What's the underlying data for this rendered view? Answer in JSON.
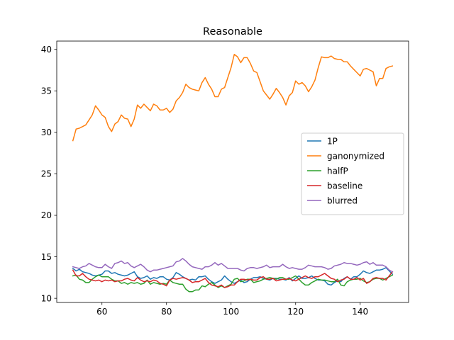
{
  "chart_data": {
    "type": "line",
    "title": "Reasonable",
    "xlabel": "",
    "ylabel": "",
    "xlim": [
      46,
      155
    ],
    "ylim": [
      9.5,
      41
    ],
    "xticks": [
      60,
      80,
      100,
      120,
      140
    ],
    "yticks": [
      10,
      15,
      20,
      25,
      30,
      35,
      40
    ],
    "grid": false,
    "legend": "center-right",
    "x": [
      51,
      52,
      53,
      54,
      55,
      56,
      57,
      58,
      59,
      60,
      61,
      62,
      63,
      64,
      65,
      66,
      67,
      68,
      69,
      70,
      71,
      72,
      73,
      74,
      75,
      76,
      77,
      78,
      79,
      80,
      81,
      82,
      83,
      84,
      85,
      86,
      87,
      88,
      89,
      90,
      91,
      92,
      93,
      94,
      95,
      96,
      97,
      98,
      99,
      100,
      101,
      102,
      103,
      104,
      105,
      106,
      107,
      108,
      109,
      110,
      111,
      112,
      113,
      114,
      115,
      116,
      117,
      118,
      119,
      120,
      121,
      122,
      123,
      124,
      125,
      126,
      127,
      128,
      129,
      130,
      131,
      132,
      133,
      134,
      135,
      136,
      137,
      138,
      139,
      140,
      141,
      142,
      143,
      144,
      145,
      146,
      147,
      148,
      149,
      150
    ],
    "series": [
      {
        "name": "1P",
        "color": "#1f77b4",
        "values": [
          13.6,
          13.3,
          13.5,
          13.2,
          13.1,
          13.0,
          12.8,
          12.7,
          12.8,
          12.9,
          13.3,
          13.3,
          13.0,
          13.1,
          12.9,
          12.8,
          12.7,
          12.8,
          13.0,
          13.2,
          12.6,
          12.4,
          12.5,
          12.7,
          12.3,
          12.5,
          12.4,
          12.6,
          12.6,
          12.3,
          12.2,
          12.5,
          13.1,
          12.9,
          12.6,
          12.4,
          12.2,
          12.3,
          12.2,
          12.6,
          12.6,
          12.7,
          12.3,
          12.0,
          11.8,
          12.0,
          12.2,
          12.7,
          12.3,
          12.0,
          11.8,
          12.0,
          12.2,
          11.9,
          12.0,
          12.3,
          12.5,
          12.5,
          12.6,
          12.4,
          12.3,
          12.2,
          12.4,
          12.4,
          12.3,
          12.3,
          12.2,
          12.5,
          12.1,
          12.4,
          12.7,
          12.4,
          12.4,
          12.5,
          12.7,
          12.4,
          12.2,
          12.2,
          12.1,
          11.7,
          11.6,
          11.9,
          12.1,
          12.0,
          12.4,
          12.6,
          12.3,
          12.6,
          12.6,
          12.9,
          13.3,
          13.1,
          13.0,
          13.2,
          13.4,
          13.4,
          13.5,
          13.7,
          13.3,
          12.9
        ]
      },
      {
        "name": "ganonymized",
        "color": "#ff7f0e",
        "values": [
          29.0,
          30.4,
          30.5,
          30.7,
          30.9,
          31.5,
          32.1,
          33.2,
          32.7,
          32.1,
          31.8,
          30.7,
          30.1,
          31.0,
          31.3,
          32.1,
          31.7,
          31.6,
          30.7,
          31.6,
          33.3,
          32.9,
          33.4,
          33.0,
          32.6,
          33.4,
          33.2,
          32.7,
          32.7,
          32.9,
          32.4,
          32.8,
          33.8,
          34.2,
          34.8,
          35.8,
          35.4,
          35.2,
          35.1,
          35.0,
          36.0,
          36.6,
          35.8,
          35.2,
          34.3,
          34.3,
          35.2,
          35.4,
          36.6,
          37.8,
          39.4,
          39.1,
          38.4,
          39.0,
          39.0,
          38.3,
          37.4,
          37.2,
          36.1,
          35.0,
          34.5,
          34.0,
          34.6,
          35.3,
          34.8,
          34.2,
          33.3,
          34.4,
          34.8,
          36.2,
          35.8,
          36.0,
          35.6,
          34.9,
          35.5,
          36.3,
          37.8,
          39.1,
          39.0,
          39.0,
          39.2,
          38.9,
          38.8,
          38.8,
          38.5,
          38.5,
          38.0,
          37.6,
          37.2,
          36.8,
          37.6,
          37.7,
          37.5,
          37.3,
          35.6,
          36.5,
          36.5,
          37.7,
          37.9,
          38.0
        ]
      },
      {
        "name": "halfP",
        "color": "#2ca02c",
        "values": [
          12.7,
          12.8,
          12.3,
          12.2,
          11.9,
          11.9,
          12.3,
          12.6,
          12.8,
          12.6,
          12.6,
          12.6,
          12.3,
          12.1,
          12.1,
          11.8,
          11.9,
          11.7,
          11.9,
          11.8,
          11.9,
          11.7,
          11.8,
          12.2,
          11.7,
          11.9,
          11.8,
          11.7,
          11.8,
          11.7,
          12.2,
          11.9,
          11.8,
          11.7,
          11.7,
          11.1,
          10.8,
          10.8,
          11.0,
          11.0,
          11.5,
          11.4,
          11.7,
          11.9,
          11.6,
          11.3,
          11.5,
          11.3,
          11.5,
          11.7,
          12.3,
          12.4,
          12.0,
          12.1,
          12.3,
          12.3,
          11.9,
          12.0,
          12.1,
          12.3,
          12.4,
          12.5,
          12.4,
          12.3,
          12.5,
          12.5,
          12.3,
          12.3,
          12.5,
          12.7,
          12.3,
          11.9,
          11.6,
          11.6,
          11.9,
          12.1,
          12.3,
          12.2,
          12.2,
          12.1,
          12.0,
          12.0,
          12.3,
          11.6,
          11.5,
          12.0,
          12.2,
          12.3,
          12.3,
          12.4,
          12.1,
          11.9,
          12.0,
          12.3,
          12.4,
          12.4,
          12.2,
          12.4,
          12.6,
          12.8
        ]
      },
      {
        "name": "baseline",
        "color": "#d62728",
        "values": [
          13.4,
          12.7,
          12.7,
          13.0,
          12.6,
          12.3,
          12.2,
          12.1,
          12.2,
          12.0,
          12.2,
          12.1,
          12.2,
          12.0,
          12.1,
          12.1,
          12.3,
          12.4,
          12.2,
          12.1,
          12.5,
          12.2,
          12.0,
          12.1,
          12.0,
          12.2,
          12.1,
          11.8,
          11.7,
          11.5,
          12.2,
          12.4,
          12.3,
          12.4,
          12.5,
          12.4,
          12.2,
          11.9,
          12.0,
          12.0,
          12.2,
          12.4,
          11.9,
          11.6,
          11.5,
          11.4,
          11.6,
          11.3,
          11.4,
          11.6,
          11.6,
          12.0,
          12.3,
          12.3,
          12.2,
          12.3,
          12.2,
          12.2,
          12.5,
          12.6,
          12.3,
          12.3,
          12.4,
          12.1,
          12.2,
          12.3,
          12.3,
          12.4,
          12.2,
          12.1,
          12.3,
          12.5,
          12.7,
          12.5,
          12.4,
          12.6,
          12.6,
          12.8,
          13.0,
          12.7,
          12.4,
          12.3,
          12.0,
          12.2,
          12.3,
          12.6,
          12.3,
          12.3,
          12.5,
          12.2,
          12.4,
          11.8,
          12.0,
          12.4,
          12.5,
          12.4,
          12.4,
          12.2,
          12.7,
          13.2
        ]
      },
      {
        "name": "blurred",
        "color": "#9467bd",
        "values": [
          13.8,
          13.7,
          13.6,
          13.8,
          13.9,
          14.2,
          14.0,
          13.8,
          13.7,
          13.7,
          14.1,
          13.8,
          13.6,
          14.2,
          14.3,
          14.5,
          14.2,
          14.3,
          13.9,
          13.7,
          13.9,
          14.1,
          13.8,
          13.4,
          13.2,
          13.4,
          13.4,
          13.5,
          13.6,
          13.7,
          13.8,
          13.9,
          14.4,
          14.5,
          14.8,
          14.5,
          14.1,
          13.8,
          13.7,
          13.6,
          13.5,
          13.8,
          13.8,
          14.0,
          14.3,
          14.0,
          14.2,
          13.9,
          13.6,
          13.6,
          13.6,
          13.6,
          13.4,
          13.3,
          13.6,
          13.7,
          13.7,
          13.6,
          13.7,
          13.8,
          14.0,
          13.7,
          13.8,
          13.8,
          13.8,
          14.1,
          13.8,
          13.6,
          13.7,
          13.6,
          13.5,
          13.5,
          13.7,
          14.0,
          13.9,
          13.8,
          13.8,
          13.8,
          13.7,
          13.5,
          13.6,
          13.9,
          14.0,
          14.1,
          14.3,
          14.2,
          14.2,
          14.1,
          14.0,
          14.1,
          14.3,
          14.4,
          14.1,
          14.3,
          14.0,
          14.0,
          14.0,
          13.8,
          13.4,
          13.2
        ]
      }
    ]
  }
}
